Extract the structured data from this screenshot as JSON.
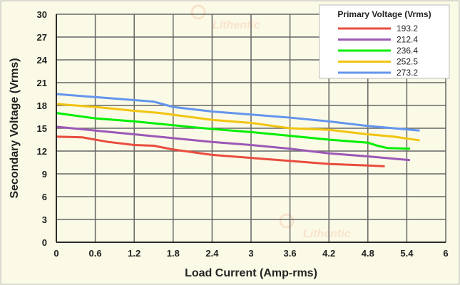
{
  "chart_data": {
    "type": "line",
    "xlabel": "Load Current (Amp-rms)",
    "ylabel": "Secondary Voltage (Vrms)",
    "xlim": [
      0,
      6
    ],
    "ylim": [
      0,
      30
    ],
    "xticks": [
      "0",
      "0.6",
      "1.2",
      "1.8",
      "2.4",
      "3",
      "3.6",
      "4.2",
      "4.8",
      "5.4",
      "6"
    ],
    "yticks": [
      "0",
      "3",
      "6",
      "9",
      "12",
      "15",
      "18",
      "21",
      "24",
      "27",
      "30"
    ],
    "grid": true,
    "legend_title": "Primary Voltage (Vrms)",
    "legend_position": "top-right",
    "watermark": "Lithentic",
    "series": [
      {
        "name": "193.2",
        "color": "#e84c3d",
        "x": [
          0,
          0.4,
          0.8,
          1.2,
          1.5,
          1.8,
          2.4,
          3.0,
          3.6,
          4.2,
          4.8,
          5.06
        ],
        "y": [
          13.9,
          13.8,
          13.2,
          12.8,
          12.7,
          12.2,
          11.5,
          11.1,
          10.7,
          10.3,
          10.1,
          10.0
        ]
      },
      {
        "name": "212.4",
        "color": "#9b59b6",
        "x": [
          0,
          0.6,
          1.2,
          1.8,
          2.4,
          3.0,
          3.6,
          4.2,
          4.8,
          5.45
        ],
        "y": [
          15.2,
          14.7,
          14.2,
          13.7,
          13.2,
          12.8,
          12.3,
          11.7,
          11.3,
          10.8
        ]
      },
      {
        "name": "236.4",
        "color": "#00ee00",
        "x": [
          0,
          0.6,
          1.2,
          1.8,
          2.4,
          3.0,
          3.6,
          4.2,
          4.8,
          4.95,
          5.1,
          5.45
        ],
        "y": [
          17.0,
          16.3,
          15.9,
          15.4,
          14.9,
          14.5,
          14.0,
          13.5,
          13.1,
          12.7,
          12.4,
          12.3
        ]
      },
      {
        "name": "252.5",
        "color": "#f1c40f",
        "x": [
          0,
          0.6,
          1.2,
          1.6,
          2.4,
          3.0,
          3.6,
          4.2,
          4.8,
          5.2,
          5.6
        ],
        "y": [
          18.2,
          17.8,
          17.3,
          17.0,
          16.1,
          15.7,
          15.0,
          14.8,
          14.2,
          13.9,
          13.4
        ]
      },
      {
        "name": "273.2",
        "color": "#6495ed",
        "x": [
          0,
          0.6,
          1.2,
          1.5,
          1.8,
          2.4,
          3.0,
          3.6,
          4.2,
          4.8,
          5.6
        ],
        "y": [
          19.5,
          19.1,
          18.7,
          18.5,
          17.8,
          17.2,
          16.8,
          16.4,
          15.9,
          15.3,
          14.7
        ]
      }
    ]
  }
}
